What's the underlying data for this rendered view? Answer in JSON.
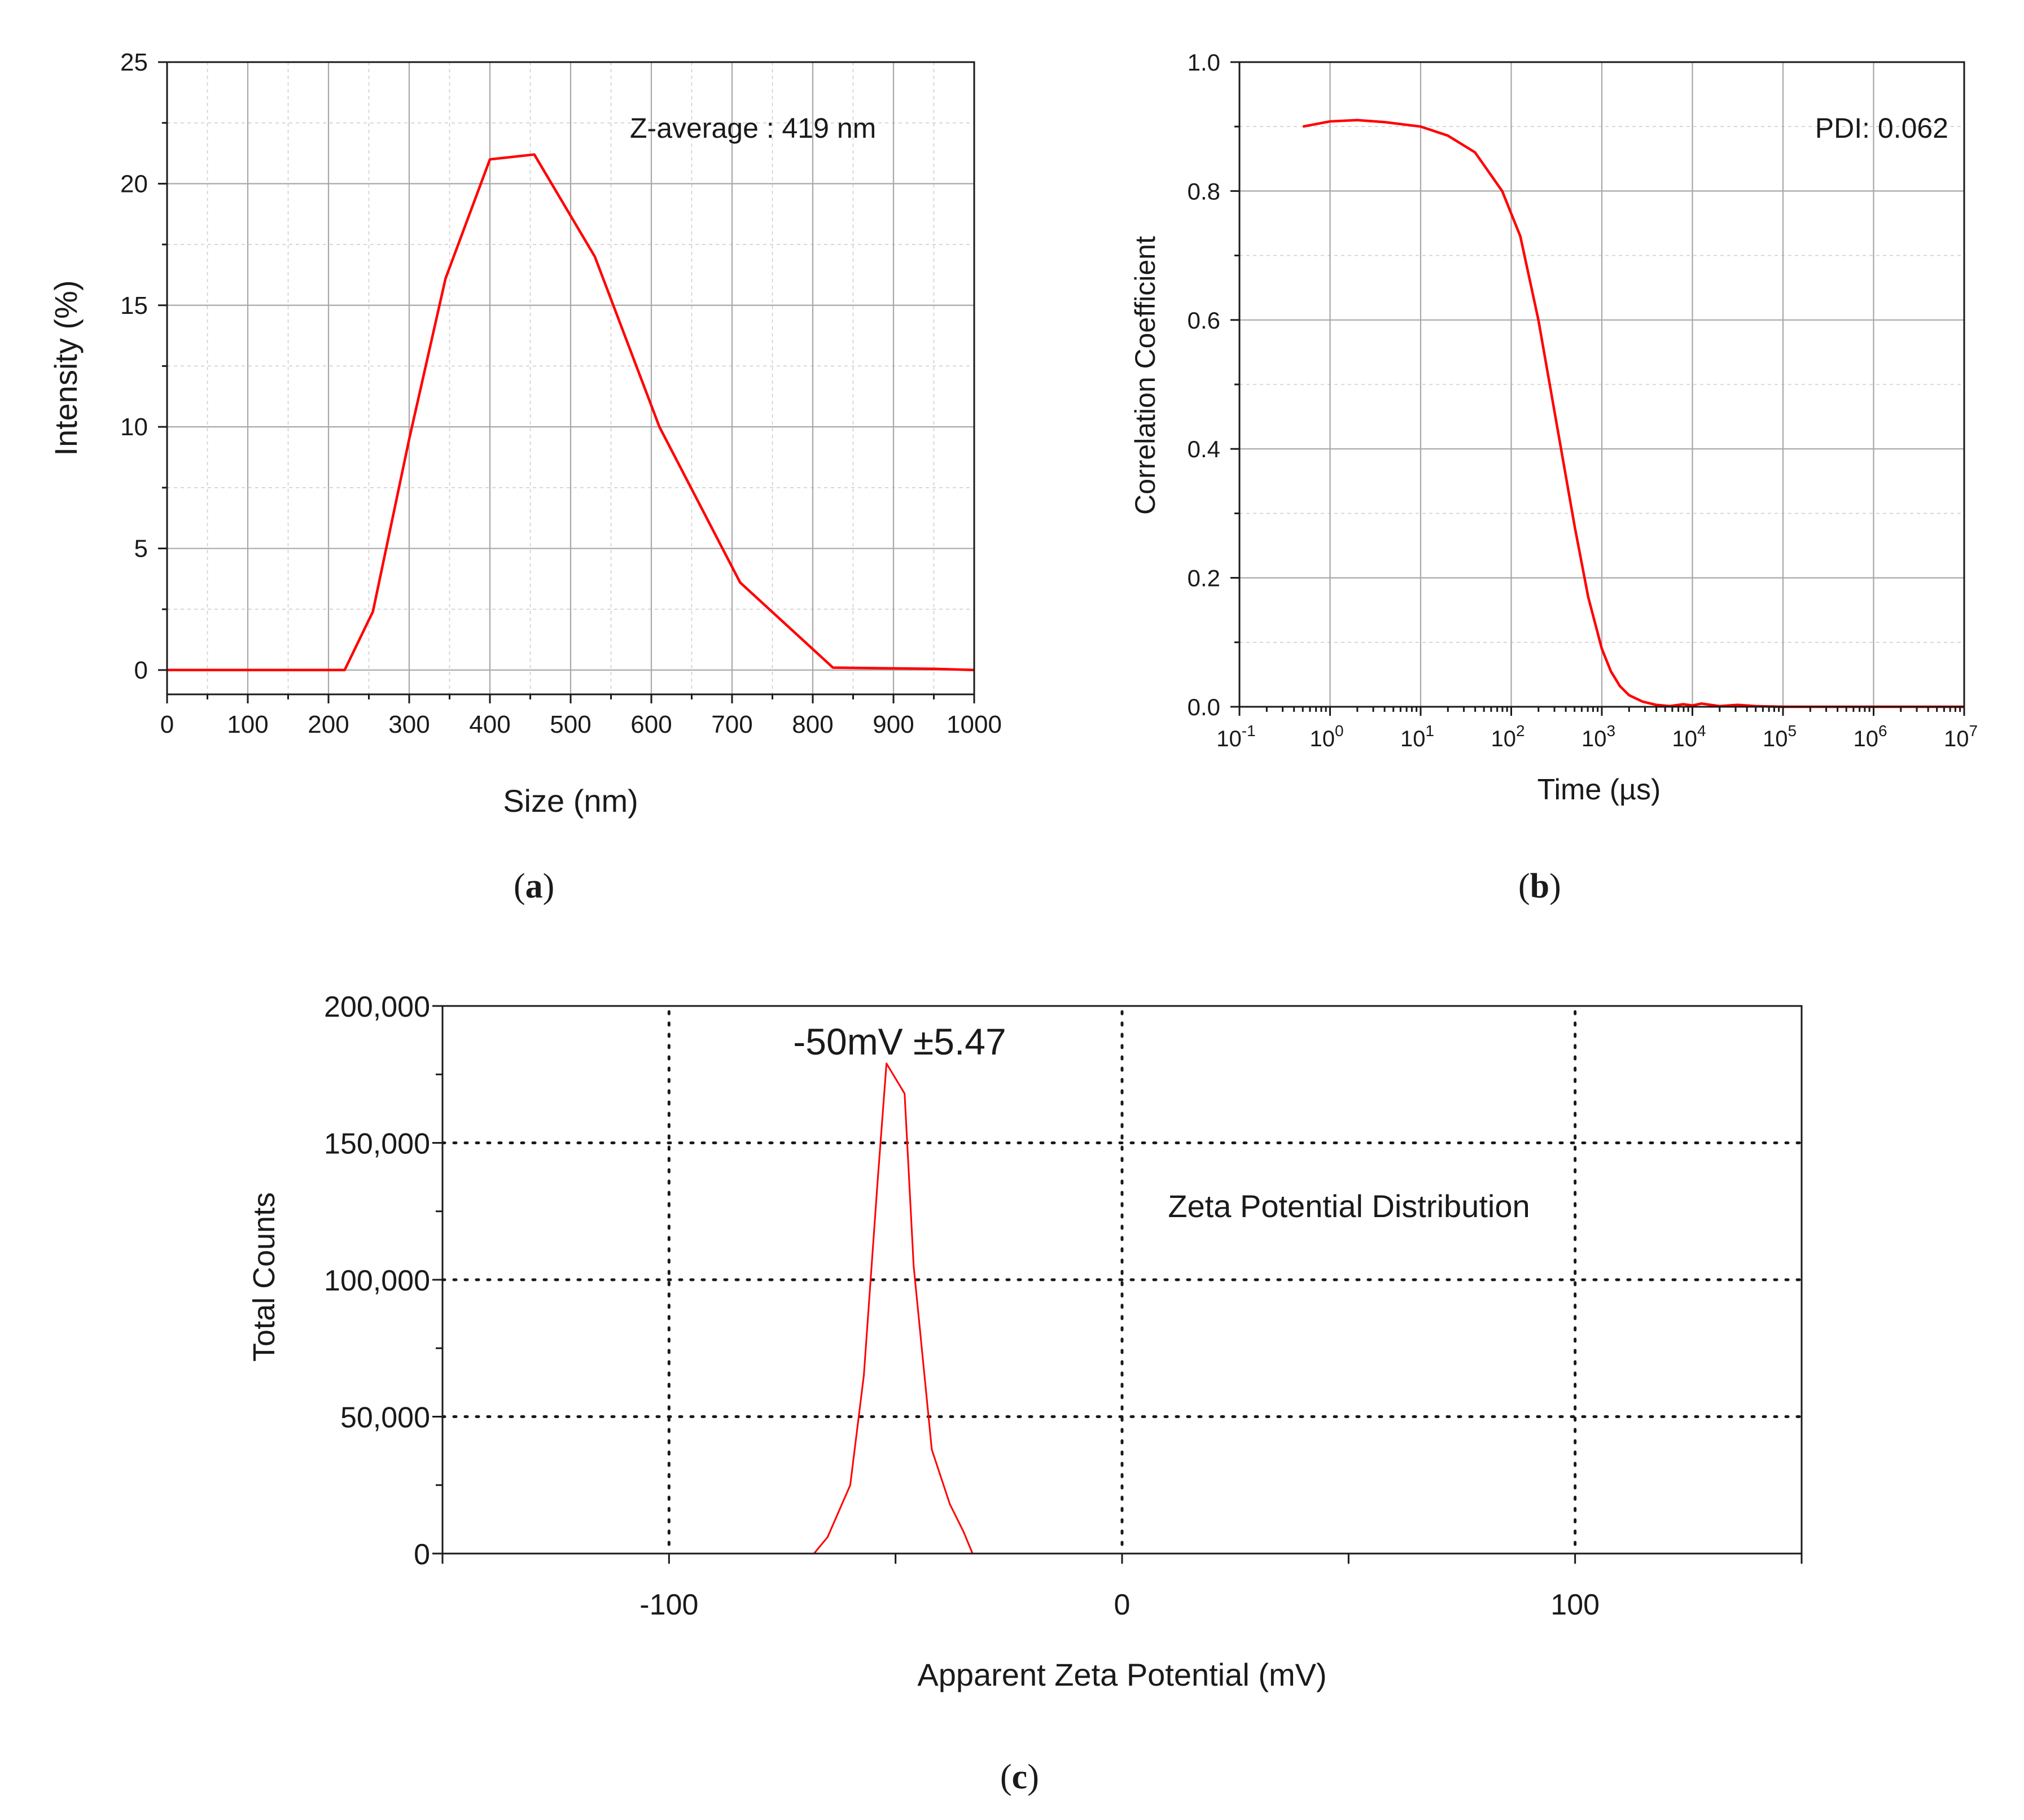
{
  "colors": {
    "series": "#ff0000",
    "axis": "#1a1a1a",
    "grid": "#a8a8a8"
  },
  "panels": {
    "a": {
      "label_open": "(",
      "label_letter": "a",
      "label_close": ")"
    },
    "b": {
      "label_open": "(",
      "label_letter": "b",
      "label_close": ")"
    },
    "c": {
      "label_open": "(",
      "label_letter": "c",
      "label_close": ")"
    }
  },
  "chart_data": [
    {
      "id": "a",
      "type": "line",
      "title": "",
      "xlabel": "Size (nm)",
      "ylabel": "Intensity (%)",
      "xlim": [
        0,
        1000
      ],
      "ylim": [
        -1,
        25
      ],
      "xticks": [
        0,
        100,
        200,
        300,
        400,
        500,
        600,
        700,
        800,
        900,
        1000
      ],
      "xtick_labels": [
        "0",
        "100",
        "200",
        "300",
        "400",
        "500",
        "600",
        "700",
        "800",
        "900",
        "1000"
      ],
      "yticks": [
        0,
        5,
        10,
        15,
        20,
        25
      ],
      "ytick_labels": [
        "0",
        "5",
        "10",
        "15",
        "20",
        "25"
      ],
      "grid": true,
      "annotation": "Z-average : 419 nm",
      "series": [
        {
          "name": "Intensity",
          "x": [
            0,
            220,
            255,
            300,
            345,
            400,
            455,
            530,
            610,
            710,
            825,
            950,
            1000
          ],
          "y": [
            0,
            0,
            2.4,
            9.5,
            16.1,
            21.0,
            21.2,
            17.0,
            10.0,
            3.6,
            0.1,
            0.05,
            0
          ]
        }
      ]
    },
    {
      "id": "b",
      "type": "line",
      "title": "",
      "xlabel": "Time (µs)",
      "ylabel": "Correlation Coefficient",
      "xscale": "log",
      "xlim_exp": [
        -1,
        7
      ],
      "ylim": [
        0,
        1.0
      ],
      "xtick_base": "10",
      "xtick_exponents": [
        "-1",
        "0",
        "1",
        "2",
        "3",
        "4",
        "5",
        "6",
        "7"
      ],
      "yticks": [
        0,
        0.2,
        0.4,
        0.6,
        0.8,
        1.0
      ],
      "ytick_labels": [
        "0.0",
        "0.2",
        "0.4",
        "0.6",
        "0.8",
        "1.0"
      ],
      "grid": true,
      "annotation": "PDI: 0.062",
      "series": [
        {
          "name": "Correlation",
          "log10_x": [
            -0.3,
            0,
            0.3,
            0.6,
            1,
            1.3,
            1.6,
            1.9,
            2.1,
            2.3,
            2.5,
            2.7,
            2.85,
            3.0,
            3.1,
            3.2,
            3.3,
            3.45,
            3.6,
            3.75,
            3.9,
            4.0,
            4.1,
            4.3,
            4.5,
            4.7,
            5.0,
            6.0,
            7.0
          ],
          "y": [
            0.9,
            0.908,
            0.91,
            0.907,
            0.9,
            0.886,
            0.86,
            0.8,
            0.73,
            0.6,
            0.44,
            0.28,
            0.17,
            0.09,
            0.055,
            0.032,
            0.018,
            0.008,
            0.003,
            0.001,
            0.004,
            0.002,
            0.005,
            0.001,
            0.003,
            0.001,
            0.0,
            0.0,
            0.0
          ]
        }
      ]
    },
    {
      "id": "c",
      "type": "line",
      "title": "",
      "xlabel": "Apparent Zeta Potential (mV)",
      "ylabel": "Total Counts",
      "xlim": [
        -150,
        150
      ],
      "ylim": [
        0,
        200000
      ],
      "xticks": [
        -100,
        0,
        100
      ],
      "xtick_labels": [
        "-100",
        "0",
        "100"
      ],
      "yticks": [
        0,
        50000,
        100000,
        150000,
        200000
      ],
      "ytick_labels": [
        "0",
        "50,000",
        "100,000",
        "150,000",
        "200,000"
      ],
      "grid": "dotted",
      "annotations": [
        "-50mV ±5.47",
        "Zeta Potential Distribution"
      ],
      "series": [
        {
          "name": "Zeta Potential Distribution",
          "x": [
            -150,
            -68,
            -65,
            -60,
            -57,
            -54,
            -52,
            -48,
            -46,
            -42,
            -38,
            -35,
            -33,
            -150
          ],
          "y": [
            0,
            0,
            6000,
            25000,
            65000,
            135000,
            179000,
            168000,
            105000,
            38000,
            18000,
            8000,
            0,
            0
          ]
        }
      ]
    }
  ]
}
